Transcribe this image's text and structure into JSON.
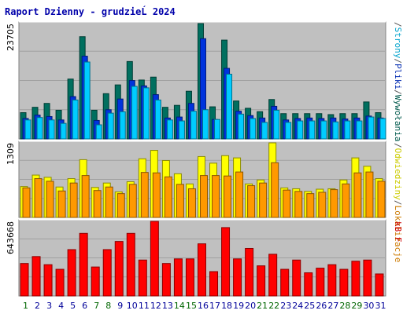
{
  "chart_data": [
    {
      "type": "bar",
      "title": "Raport Dzienny -  grudzieĹ  2024",
      "panel": "top",
      "ylabel_max": "23705",
      "categories": [
        "1",
        "2",
        "3",
        "4",
        "5",
        "6",
        "7",
        "8",
        "9",
        "10",
        "11",
        "12",
        "13",
        "14",
        "15",
        "16",
        "17",
        "18",
        "19",
        "20",
        "21",
        "22",
        "23",
        "24",
        "25",
        "26",
        "27",
        "28",
        "29",
        "30",
        "31"
      ],
      "weekend_days": [
        "1",
        "7",
        "8",
        "14",
        "15",
        "21",
        "22",
        "28",
        "29"
      ],
      "series": [
        {
          "name": "Wywołania",
          "color": "#006f5f",
          "values": [
            5400,
            6500,
            7300,
            5900,
            12300,
            21000,
            5900,
            9300,
            11100,
            15900,
            12100,
            12700,
            6500,
            6900,
            9800,
            23700,
            6600,
            20300,
            7800,
            6300,
            5600,
            8100,
            5200,
            5200,
            5200,
            5200,
            5000,
            5200,
            5200,
            7600,
            5400
          ]
        },
        {
          "name": "Pliki",
          "color": "#0033dd",
          "values": [
            4200,
            4900,
            4600,
            3900,
            8700,
            17000,
            3800,
            6000,
            8200,
            12000,
            10900,
            9100,
            4300,
            4500,
            7300,
            20600,
            4000,
            14500,
            5700,
            4800,
            4300,
            6700,
            3900,
            4200,
            4300,
            4200,
            4300,
            4100,
            4300,
            4700,
            4300
          ]
        },
        {
          "name": "Strony",
          "color": "#00ccff",
          "values": [
            3900,
            4400,
            3900,
            3200,
            8000,
            15800,
            2900,
            5300,
            5600,
            10800,
            10500,
            8000,
            3900,
            3700,
            5700,
            6000,
            4000,
            13300,
            5100,
            4200,
            3400,
            5900,
            3400,
            3700,
            3700,
            3700,
            3500,
            3700,
            3700,
            4500,
            4200
          ]
        }
      ],
      "legend": [
        "Wywołania",
        "/",
        "Pliki",
        "/",
        "Strony",
        "/"
      ]
    },
    {
      "type": "bar",
      "panel": "middle",
      "ylabel_max": "1309",
      "categories": [
        "1",
        "2",
        "3",
        "4",
        "5",
        "6",
        "7",
        "8",
        "9",
        "10",
        "11",
        "12",
        "13",
        "14",
        "15",
        "16",
        "17",
        "18",
        "19",
        "20",
        "21",
        "22",
        "23",
        "24",
        "25",
        "26",
        "27",
        "28",
        "29",
        "30",
        "31"
      ],
      "series": [
        {
          "name": "Odwiedziny",
          "color": "#ffff00",
          "values": [
            700,
            960,
            910,
            690,
            880,
            1309,
            680,
            780,
            580,
            810,
            1330,
            1520,
            1290,
            990,
            760,
            1380,
            1230,
            1400,
            1350,
            760,
            850,
            1690,
            670,
            650,
            590,
            640,
            650,
            850,
            1350,
            1160,
            880
          ]
        },
        {
          "name": "Lokalizacje",
          "color": "#ff9900",
          "values": [
            670,
            880,
            820,
            600,
            780,
            950,
            610,
            690,
            540,
            750,
            1020,
            1010,
            920,
            750,
            650,
            950,
            950,
            940,
            1030,
            720,
            780,
            1240,
            620,
            590,
            540,
            570,
            630,
            760,
            1010,
            1030,
            820
          ]
        }
      ],
      "legend": [
        "Lokalizacje",
        "/",
        "Odwiedziny",
        "/"
      ]
    },
    {
      "type": "bar",
      "panel": "bottom",
      "ylabel_max": "643668",
      "categories": [
        "1",
        "2",
        "3",
        "4",
        "5",
        "6",
        "7",
        "8",
        "9",
        "10",
        "11",
        "12",
        "13",
        "14",
        "15",
        "16",
        "17",
        "18",
        "19",
        "20",
        "21",
        "22",
        "23",
        "24",
        "25",
        "26",
        "27",
        "28",
        "29",
        "30",
        "31"
      ],
      "series": [
        {
          "name": "kB F",
          "color": "#ff0000",
          "values": [
            280000,
            340000,
            270000,
            230000,
            400000,
            540000,
            250000,
            400000,
            470000,
            540000,
            310000,
            643668,
            280000,
            320000,
            320000,
            450000,
            210000,
            590000,
            320000,
            410000,
            260000,
            360000,
            230000,
            310000,
            200000,
            240000,
            270000,
            230000,
            300000,
            310000,
            190000
          ]
        }
      ],
      "legend": [
        "kB F"
      ]
    }
  ],
  "colors": {
    "background": "#ffffff",
    "plot_bg": "#c0c0c0",
    "title": "#0000aa",
    "weekday_label": "#000099",
    "weekend_label": "#006600"
  }
}
